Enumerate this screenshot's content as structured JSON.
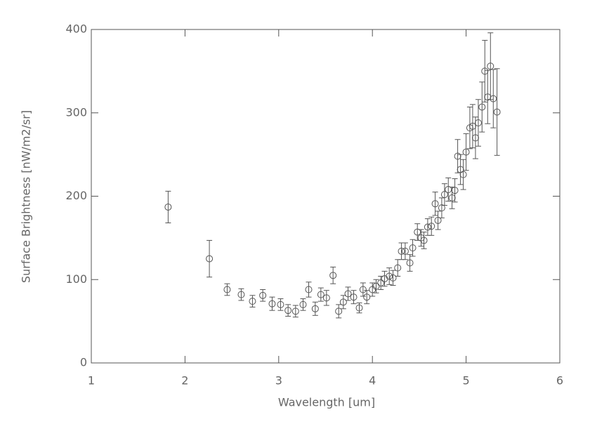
{
  "chart_data": {
    "type": "scatter",
    "x_label": "Wavelength [um]",
    "y_label": "Surface Brightness [nW/m2/sr]",
    "xlim": [
      1,
      6
    ],
    "xticks": [
      1,
      2,
      3,
      4,
      5,
      6
    ],
    "ylim": [
      0,
      400
    ],
    "yticks": [
      0,
      100,
      200,
      300,
      400
    ],
    "x": [
      1.82,
      2.26,
      2.45,
      2.6,
      2.72,
      2.83,
      2.93,
      3.02,
      3.1,
      3.18,
      3.26,
      3.32,
      3.39,
      3.45,
      3.51,
      3.58,
      3.64,
      3.69,
      3.74,
      3.8,
      3.86,
      3.9,
      3.94,
      4.0,
      4.04,
      4.09,
      4.13,
      4.18,
      4.22,
      4.27,
      4.31,
      4.35,
      4.4,
      4.43,
      4.48,
      4.52,
      4.55,
      4.59,
      4.63,
      4.67,
      4.7,
      4.74,
      4.77,
      4.81,
      4.85,
      4.88,
      4.91,
      4.94,
      4.97,
      5.0,
      5.04,
      5.07,
      5.1,
      5.13,
      5.17,
      5.2,
      5.23,
      5.26,
      5.29,
      5.33
    ],
    "series": [
      {
        "color": "#555555",
        "values": [
          187,
          125,
          88,
          82,
          74,
          81,
          71,
          70,
          63,
          62,
          70,
          88,
          65,
          82,
          78,
          105,
          62,
          73,
          83,
          79,
          66,
          88,
          79,
          88,
          92,
          96,
          101,
          104,
          102,
          114,
          134,
          134,
          120,
          138,
          157,
          150,
          147,
          163,
          164,
          191,
          171,
          186,
          202,
          208,
          198,
          207,
          248,
          232,
          226,
          253,
          282,
          284,
          270,
          288,
          307,
          350,
          319,
          356,
          317,
          301
        ],
        "errors": [
          19,
          22,
          7,
          7,
          7,
          7,
          8,
          7,
          7,
          7,
          7,
          9,
          8,
          8,
          9,
          10,
          8,
          8,
          8,
          8,
          6,
          8,
          8,
          8,
          8,
          8,
          9,
          10,
          9,
          10,
          10,
          10,
          10,
          10,
          10,
          10,
          10,
          10,
          11,
          14,
          11,
          12,
          13,
          14,
          13,
          14,
          20,
          18,
          18,
          22,
          25,
          26,
          25,
          28,
          30,
          37,
          32,
          40,
          35,
          52
        ]
      }
    ]
  }
}
